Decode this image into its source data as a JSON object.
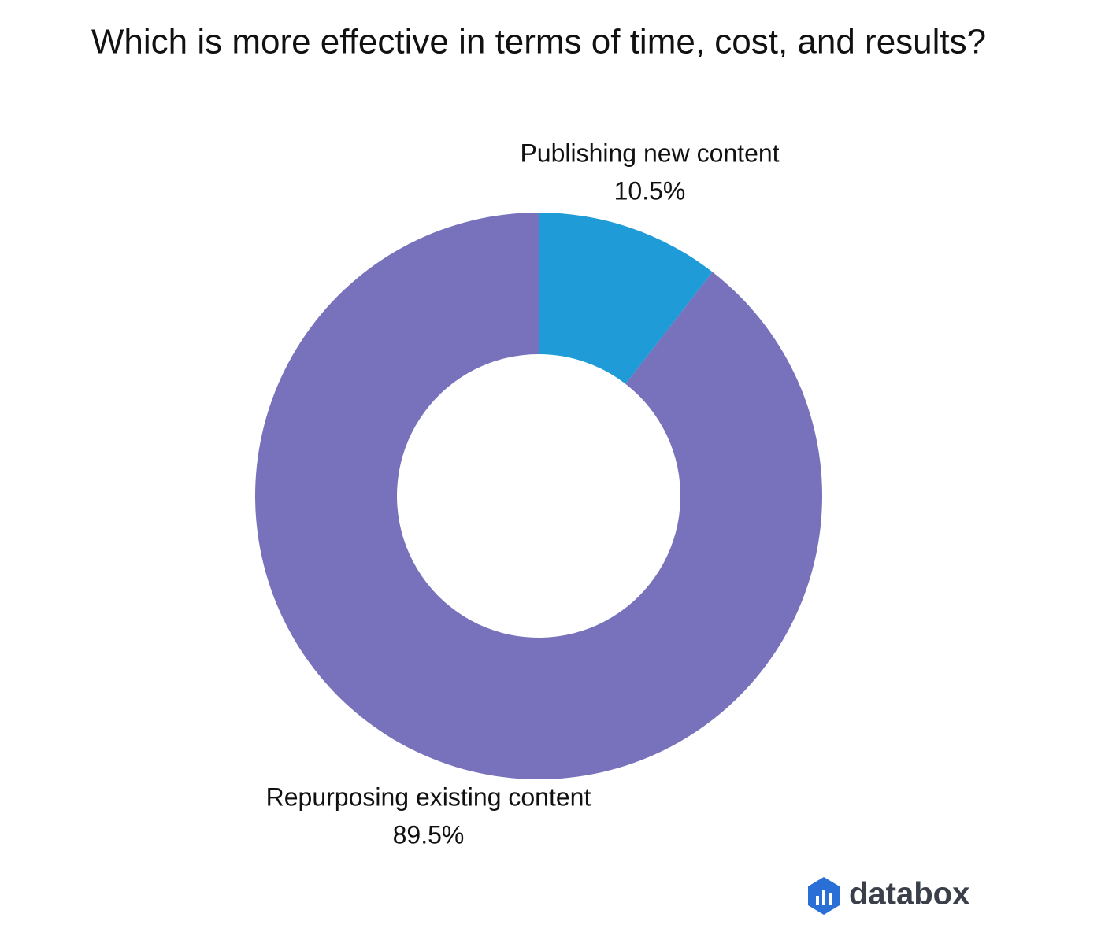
{
  "chart_data": {
    "type": "pie",
    "title": "Which is more effective in terms of time, cost, and results?",
    "categories": [
      "Publishing new content",
      "Repurposing existing content"
    ],
    "values": [
      10.5,
      89.5
    ],
    "value_labels": [
      "10.5%",
      "89.5%"
    ],
    "colors": [
      "#1f9bd7",
      "#7872bc"
    ],
    "donut": true
  },
  "logo": "databox"
}
